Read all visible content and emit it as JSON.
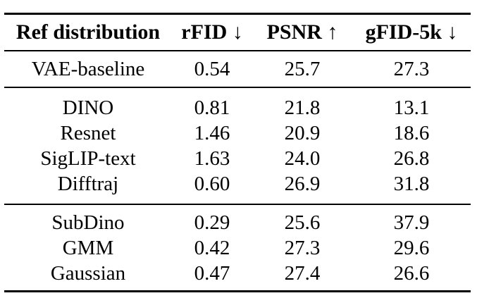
{
  "table": {
    "headers": [
      "Ref distribution",
      "rFID ↓",
      "PSNR ↑",
      "gFID-5k ↓"
    ],
    "groups": [
      {
        "rows": [
          [
            "VAE-baseline",
            "0.54",
            "25.7",
            "27.3"
          ]
        ]
      },
      {
        "rows": [
          [
            "DINO",
            "0.81",
            "21.8",
            "13.1"
          ],
          [
            "Resnet",
            "1.46",
            "20.9",
            "18.6"
          ],
          [
            "SigLIP-text",
            "1.63",
            "24.0",
            "26.8"
          ],
          [
            "Difftraj",
            "0.60",
            "26.9",
            "31.8"
          ]
        ]
      },
      {
        "rows": [
          [
            "SubDino",
            "0.29",
            "25.6",
            "37.9"
          ],
          [
            "GMM",
            "0.42",
            "27.3",
            "29.6"
          ],
          [
            "Gaussian",
            "0.47",
            "27.4",
            "26.6"
          ]
        ]
      }
    ],
    "colors": {
      "text": "#000000",
      "rule": "#000000",
      "background": "#ffffff"
    }
  },
  "chart_data": {
    "type": "table",
    "title": "",
    "columns": [
      "Ref distribution",
      "rFID ↓",
      "PSNR ↑",
      "gFID-5k ↓"
    ],
    "rows": [
      [
        "VAE-baseline",
        0.54,
        25.7,
        27.3
      ],
      [
        "DINO",
        0.81,
        21.8,
        13.1
      ],
      [
        "Resnet",
        1.46,
        20.9,
        18.6
      ],
      [
        "SigLIP-text",
        1.63,
        24.0,
        26.8
      ],
      [
        "Difftraj",
        0.6,
        26.9,
        31.8
      ],
      [
        "SubDino",
        0.29,
        25.6,
        37.9
      ],
      [
        "GMM",
        0.42,
        27.3,
        29.6
      ],
      [
        "Gaussian",
        0.47,
        27.4,
        26.6
      ]
    ],
    "row_groups": [
      [
        "VAE-baseline"
      ],
      [
        "DINO",
        "Resnet",
        "SigLIP-text",
        "Difftraj"
      ],
      [
        "SubDino",
        "GMM",
        "Gaussian"
      ]
    ]
  }
}
